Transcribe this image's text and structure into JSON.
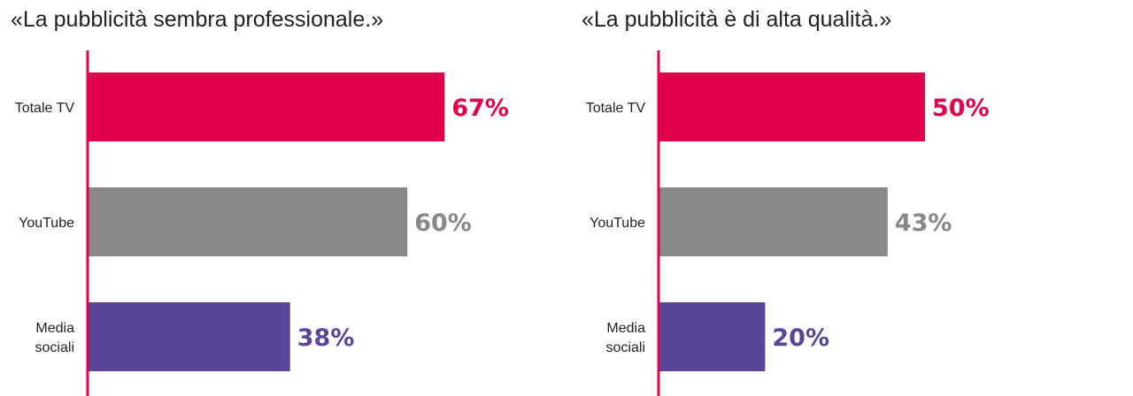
{
  "colors": {
    "axis": "#e2004a",
    "tv": "#e2004a",
    "youtube": "#898989",
    "social": "#5a4696"
  },
  "chart_data": [
    {
      "type": "bar",
      "orientation": "horizontal",
      "title": "«La pubblicità sembra professionale.»",
      "categories": [
        {
          "lines": [
            "Totale TV"
          ],
          "full": "Totale TV"
        },
        {
          "lines": [
            "YouTube"
          ],
          "full": "YouTube"
        },
        {
          "lines": [
            "Media",
            "sociali"
          ],
          "full": "Media sociali"
        }
      ],
      "values": [
        67,
        60,
        38
      ],
      "value_labels": [
        "67%",
        "60%",
        "38%"
      ],
      "bar_colors": [
        "#e2004a",
        "#898989",
        "#5a4696"
      ],
      "xlim": [
        0,
        100
      ],
      "grid": false
    },
    {
      "type": "bar",
      "orientation": "horizontal",
      "title": "«La pubblicità è di alta qualità.»",
      "categories": [
        {
          "lines": [
            "Totale TV"
          ],
          "full": "Totale TV"
        },
        {
          "lines": [
            "YouTube"
          ],
          "full": "YouTube"
        },
        {
          "lines": [
            "Media",
            "sociali"
          ],
          "full": "Media sociali"
        }
      ],
      "values": [
        50,
        43,
        20
      ],
      "value_labels": [
        "50%",
        "43%",
        "20%"
      ],
      "bar_colors": [
        "#e2004a",
        "#898989",
        "#5a4696"
      ],
      "xlim": [
        0,
        100
      ],
      "grid": false
    }
  ]
}
